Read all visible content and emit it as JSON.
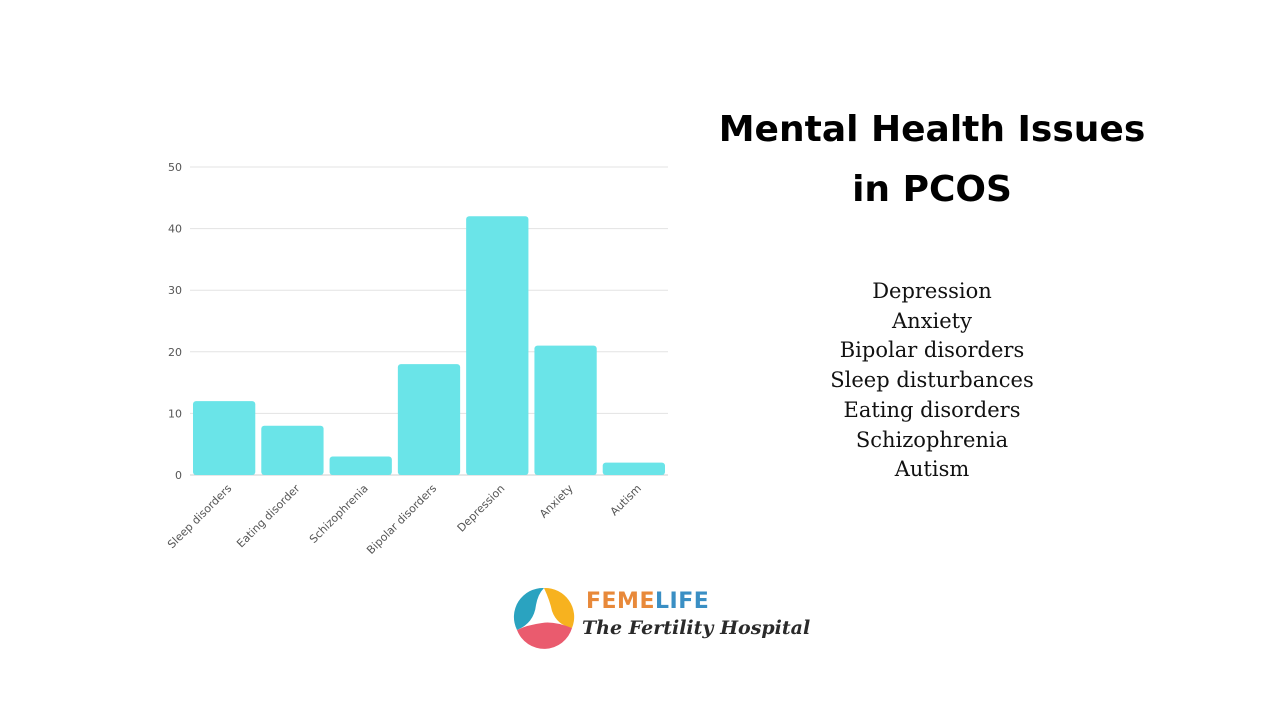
{
  "chart_data": {
    "type": "bar",
    "categories": [
      "Sleep disorders",
      "Eating disorder",
      "Schizophrenia",
      "Bipolar disorders",
      "Depression",
      "Anxiety",
      "Autism"
    ],
    "values": [
      12,
      8,
      3,
      18,
      42,
      21,
      2
    ],
    "yticks": [
      "0",
      "10",
      "20",
      "30",
      "40",
      "50"
    ],
    "ylim": [
      0,
      50
    ],
    "grid": true,
    "bar_color": "#6ae4e8"
  },
  "title": "Mental Health Issues in PCOS",
  "issues": [
    "Depression",
    "Anxiety",
    "Bipolar disorders",
    "Sleep disturbances",
    "Eating disorders",
    "Schizophrenia",
    "Autism"
  ],
  "logo": {
    "brand_part1": "FEME",
    "brand_part2": "LIFE",
    "tagline": "The Fertility Hospital",
    "colors": {
      "teal": "#2aa3c0",
      "yellow": "#f7b21f",
      "pink": "#ea5b6e",
      "orange": "#e8893a",
      "blue": "#3a8fc4"
    }
  }
}
